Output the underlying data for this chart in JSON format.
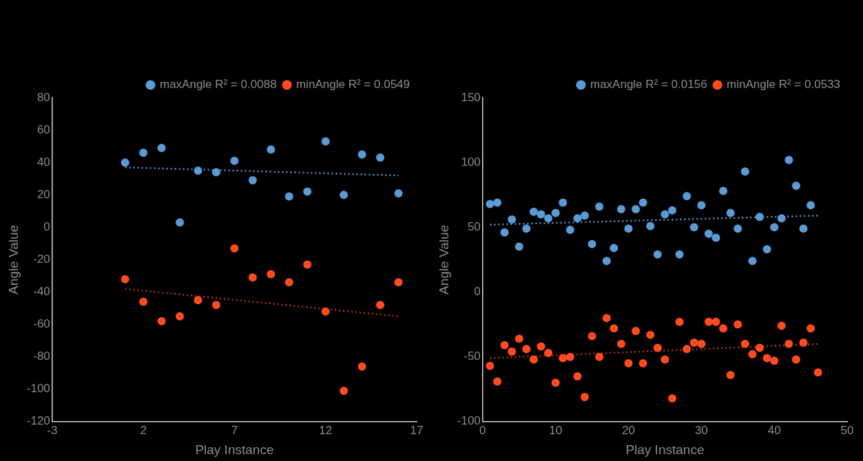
{
  "chart_data": [
    {
      "type": "scatter",
      "xlabel": "Play Instance",
      "ylabel": "Angle Value",
      "xlim": [
        -3,
        17
      ],
      "xticks": [
        -3,
        2,
        7,
        12,
        17
      ],
      "ylim": [
        -120,
        80
      ],
      "yticks": [
        -120,
        -100,
        -80,
        -60,
        -40,
        -20,
        0,
        20,
        40,
        60,
        80
      ],
      "grid": false,
      "legend": "top right",
      "marker": "circle",
      "x": [
        1,
        2,
        3,
        4,
        5,
        6,
        7,
        8,
        9,
        10,
        11,
        12,
        13,
        14,
        15,
        16
      ],
      "series": [
        {
          "name": "maxAngle R² = 0.0088",
          "color": "#5b9bd5",
          "values": [
            40,
            46,
            49,
            3,
            35,
            34,
            41,
            29,
            48,
            19,
            22,
            53,
            20,
            45,
            43,
            21
          ]
        },
        {
          "name": "minAngle R² = 0.0549",
          "color": "#ff4b1f",
          "values": [
            -32,
            -46,
            -58,
            -55,
            -45,
            -48,
            -13,
            -31,
            -29,
            -34,
            -23,
            -52,
            -101,
            -86,
            -48,
            -34
          ]
        },
        {
          "type": "line",
          "color": "#5b9bd5",
          "line_style": "dotted",
          "marker": "none",
          "x": [
            1,
            16
          ],
          "values": [
            37,
            32
          ]
        },
        {
          "type": "line",
          "color": "#c0301a",
          "line_style": "dotted",
          "marker": "none",
          "x": [
            1,
            16
          ],
          "values": [
            -38,
            -55
          ]
        }
      ]
    },
    {
      "type": "scatter",
      "xlabel": "Play Instance",
      "ylabel": "Angle Value",
      "xlim": [
        0,
        50
      ],
      "xticks": [
        0,
        10,
        20,
        30,
        40,
        50
      ],
      "ylim": [
        -100,
        150
      ],
      "yticks": [
        -100,
        -50,
        0,
        50,
        100,
        150
      ],
      "grid": false,
      "legend": "top right",
      "marker": "circle",
      "series": [
        {
          "name": "maxAngle R² = 0.0156",
          "color": "#5b9bd5",
          "x": [
            1,
            2,
            3,
            4,
            5,
            6,
            7,
            8,
            9,
            10,
            11,
            12,
            13,
            14,
            15,
            16,
            17,
            18,
            19,
            20,
            21,
            22,
            23,
            24,
            25,
            26,
            27,
            28,
            29,
            30,
            31,
            32,
            33,
            34,
            35,
            36,
            37,
            38,
            39,
            40,
            41,
            42,
            43,
            44,
            45
          ],
          "values": [
            68,
            69,
            46,
            56,
            35,
            49,
            62,
            60,
            57,
            61,
            69,
            48,
            57,
            59,
            37,
            66,
            24,
            34,
            64,
            49,
            64,
            69,
            51,
            29,
            60,
            63,
            29,
            74,
            50,
            67,
            45,
            42,
            78,
            61,
            49,
            93,
            24,
            58,
            33,
            50,
            57,
            102,
            82,
            49,
            67
          ]
        },
        {
          "name": "minAngle R² = 0.0533",
          "color": "#ff4b1f",
          "x": [
            1,
            2,
            3,
            4,
            5,
            6,
            7,
            8,
            9,
            10,
            11,
            12,
            13,
            14,
            15,
            16,
            17,
            18,
            19,
            20,
            21,
            22,
            23,
            24,
            25,
            26,
            27,
            28,
            29,
            30,
            31,
            32,
            33,
            34,
            35,
            36,
            37,
            38,
            39,
            40,
            41,
            42,
            43,
            44,
            45,
            46
          ],
          "values": [
            -57,
            -69,
            -41,
            -46,
            -36,
            -44,
            -52,
            -42,
            -47,
            -70,
            -51,
            -50,
            -65,
            -81,
            -34,
            -50,
            -20,
            -28,
            -40,
            -55,
            -30,
            -55,
            -33,
            -43,
            -52,
            -82,
            -23,
            -44,
            -39,
            -40,
            -23,
            -23,
            -28,
            -64,
            -25,
            -40,
            -48,
            -43,
            -51,
            -53,
            -26,
            -40,
            -52,
            -39,
            -28,
            -62
          ]
        },
        {
          "type": "line",
          "color": "#5b9bd5",
          "line_style": "dotted",
          "marker": "none",
          "x": [
            1,
            46
          ],
          "values": [
            52,
            59
          ]
        },
        {
          "type": "line",
          "color": "#c0301a",
          "line_style": "dotted",
          "marker": "none",
          "x": [
            1,
            46
          ],
          "values": [
            -51,
            -40
          ]
        }
      ]
    }
  ]
}
